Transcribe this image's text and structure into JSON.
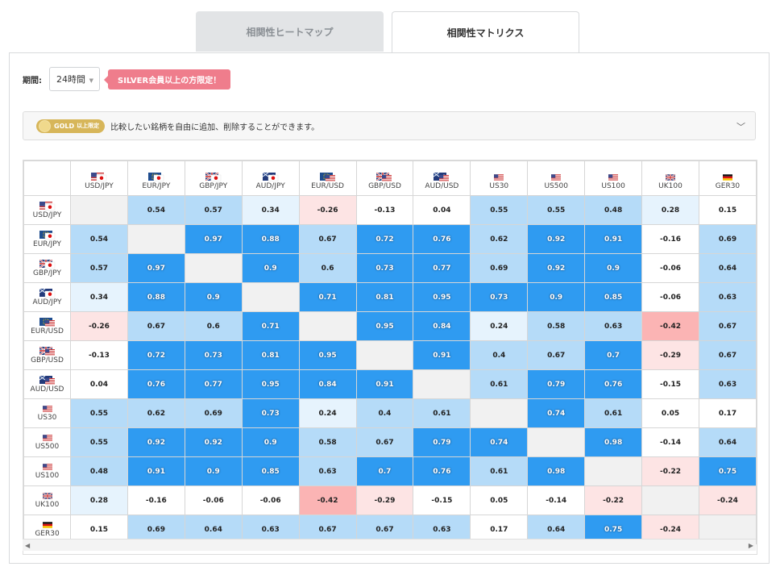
{
  "tabs": [
    {
      "label": "相関性ヒートマップ",
      "active": false
    },
    {
      "label": "相関性マトリクス",
      "active": true
    }
  ],
  "period": {
    "label": "期間:",
    "value": "24時間",
    "badge": "SILVER会員以上の方限定！"
  },
  "gold": {
    "badge_main": "GOLD",
    "badge_sub": "以上限定",
    "text": "比較したい銘柄を自由に追加、削除することができます。"
  },
  "symbols": [
    {
      "name": "USD/JPY",
      "flags": [
        "us",
        "jp"
      ]
    },
    {
      "name": "EUR/JPY",
      "flags": [
        "eu",
        "jp"
      ]
    },
    {
      "name": "GBP/JPY",
      "flags": [
        "gb",
        "jp"
      ]
    },
    {
      "name": "AUD/JPY",
      "flags": [
        "au",
        "jp"
      ]
    },
    {
      "name": "EUR/USD",
      "flags": [
        "eu",
        "us"
      ]
    },
    {
      "name": "GBP/USD",
      "flags": [
        "gb",
        "us"
      ]
    },
    {
      "name": "AUD/USD",
      "flags": [
        "au",
        "us"
      ]
    },
    {
      "name": "US30",
      "flags": [
        "us"
      ]
    },
    {
      "name": "US500",
      "flags": [
        "us"
      ]
    },
    {
      "name": "US100",
      "flags": [
        "us"
      ]
    },
    {
      "name": "UK100",
      "flags": [
        "gb"
      ]
    },
    {
      "name": "GER30",
      "flags": [
        "de"
      ]
    }
  ],
  "matrix": [
    [
      null,
      0.54,
      0.57,
      0.34,
      -0.26,
      -0.13,
      0.04,
      0.55,
      0.55,
      0.48,
      0.28,
      0.15
    ],
    [
      0.54,
      null,
      0.97,
      0.88,
      0.67,
      0.72,
      0.76,
      0.62,
      0.92,
      0.91,
      -0.16,
      0.69
    ],
    [
      0.57,
      0.97,
      null,
      0.9,
      0.6,
      0.73,
      0.77,
      0.69,
      0.92,
      0.9,
      -0.06,
      0.64
    ],
    [
      0.34,
      0.88,
      0.9,
      null,
      0.71,
      0.81,
      0.95,
      0.73,
      0.9,
      0.85,
      -0.06,
      0.63
    ],
    [
      -0.26,
      0.67,
      0.6,
      0.71,
      null,
      0.95,
      0.84,
      0.24,
      0.58,
      0.63,
      -0.42,
      0.67
    ],
    [
      -0.13,
      0.72,
      0.73,
      0.81,
      0.95,
      null,
      0.91,
      0.4,
      0.67,
      0.7,
      -0.29,
      0.67
    ],
    [
      0.04,
      0.76,
      0.77,
      0.95,
      0.84,
      0.91,
      null,
      0.61,
      0.79,
      0.76,
      -0.15,
      0.63
    ],
    [
      0.55,
      0.62,
      0.69,
      0.73,
      0.24,
      0.4,
      0.61,
      null,
      0.74,
      0.61,
      0.05,
      0.17
    ],
    [
      0.55,
      0.92,
      0.92,
      0.9,
      0.58,
      0.67,
      0.79,
      0.74,
      null,
      0.98,
      -0.14,
      0.64
    ],
    [
      0.48,
      0.91,
      0.9,
      0.85,
      0.63,
      0.7,
      0.76,
      0.61,
      0.98,
      null,
      -0.22,
      0.75
    ],
    [
      0.28,
      -0.16,
      -0.06,
      -0.06,
      -0.42,
      -0.29,
      -0.15,
      0.05,
      -0.14,
      -0.22,
      null,
      -0.24
    ],
    [
      0.15,
      0.69,
      0.64,
      0.63,
      0.67,
      0.67,
      0.63,
      0.17,
      0.64,
      0.75,
      -0.24,
      null
    ]
  ],
  "colors": {
    "strong_pos": "#2f9bf1",
    "mid_pos": "#b5dbf8",
    "weak_pos": "#e6f3fd",
    "neutral": "#ffffff",
    "weak_neg": "#fde4e4",
    "strong_neg": "#fbb4b4",
    "diagonal": "#f1f1f1"
  }
}
